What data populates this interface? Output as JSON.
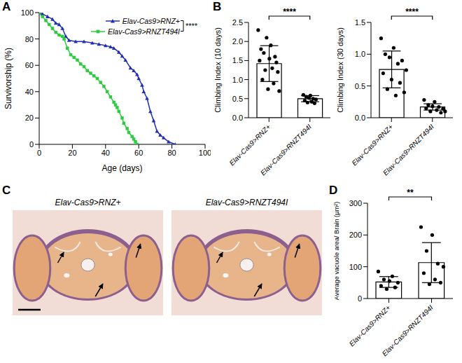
{
  "chart_data": [
    {
      "panel": "A",
      "type": "line",
      "x_label": "Age (days)",
      "y_label": "Survivorship (%)",
      "xlim": [
        0,
        100
      ],
      "xticks": [
        0,
        20,
        40,
        60,
        80,
        100
      ],
      "ylim": [
        0,
        100
      ],
      "yticks": [
        0,
        20,
        40,
        60,
        80,
        100
      ],
      "legend": "upper right",
      "annotations": [
        {
          "text": "****"
        }
      ],
      "series": [
        {
          "name": "Elav-Cas9>RNZ+",
          "color": "#1f2fb5",
          "marker": "triangle",
          "x": [
            0,
            2,
            5,
            8,
            10,
            12,
            14,
            16,
            18,
            22,
            27,
            32,
            36,
            40,
            43,
            45,
            48,
            50,
            52,
            55,
            57,
            59,
            60,
            62,
            63,
            65,
            67,
            69,
            71,
            73,
            75,
            78,
            82
          ],
          "values": [
            100,
            99,
            97,
            95,
            92,
            91,
            88,
            82,
            79,
            78,
            78,
            77,
            76,
            75,
            74,
            73,
            70,
            67,
            64,
            58,
            56,
            53,
            50,
            45,
            40,
            35,
            25,
            18,
            10,
            7,
            5,
            2,
            0
          ]
        },
        {
          "name": "Elav-Cas9>RNZT494I",
          "color": "#2ecc40",
          "marker": "square",
          "x": [
            0,
            2,
            4,
            6,
            8,
            10,
            12,
            14,
            15,
            17,
            19,
            21,
            23,
            25,
            27,
            29,
            31,
            33,
            35,
            37,
            39,
            41,
            43,
            45,
            46,
            47,
            48,
            50,
            51,
            53,
            54,
            56,
            57,
            58,
            59
          ],
          "values": [
            100,
            97,
            94,
            91,
            88,
            85,
            83,
            82,
            80,
            73,
            68,
            66,
            64,
            61,
            59,
            56,
            54,
            52,
            50,
            47,
            44,
            40,
            36,
            32,
            30,
            28,
            25,
            20,
            16,
            12,
            9,
            6,
            4,
            2,
            0
          ]
        }
      ]
    },
    {
      "panel": "B",
      "type": "bar",
      "y_label": "Climbing Index (10 days)",
      "categories": [
        "Elav-Cas9>RNZ+",
        "Elav-Cas9>RNZT494I"
      ],
      "values": [
        1.42,
        0.5
      ],
      "errors": [
        0.47,
        0.08
      ],
      "points": [
        [
          2.3,
          1.5,
          1.8,
          1.0,
          1.7,
          1.25,
          2.1,
          0.75,
          1.55,
          1.9,
          1.3,
          0.9,
          1.6,
          1.45,
          1.2,
          0.7
        ],
        [
          0.6,
          0.45,
          0.55,
          0.4,
          0.52,
          0.58,
          0.42,
          0.5,
          0.38,
          0.48
        ]
      ],
      "ylim": [
        0,
        2.5
      ],
      "yticks": [
        {
          "value": 0,
          "label": "0.0"
        },
        0.5,
        {
          "value": 1,
          "label": "1.0"
        },
        1.5,
        {
          "value": 2,
          "label": "2.0"
        },
        2.5
      ],
      "color": "#ffffff",
      "annotations": [
        {
          "text": "****"
        }
      ]
    },
    {
      "type": "bar",
      "y_label": "Climbing Index (30 days)",
      "categories": [
        "Elav-Cas9>RNZ+",
        "Elav-Cas9>RNZT494I"
      ],
      "values": [
        0.76,
        0.17
      ],
      "errors": [
        0.29,
        0.05
      ],
      "points": [
        [
          1.25,
          0.7,
          1.0,
          0.45,
          0.95,
          0.6,
          1.1,
          0.35,
          0.85,
          0.55,
          0.9,
          0.4,
          0.75
        ],
        [
          0.28,
          0.15,
          0.2,
          0.1,
          0.18,
          0.25,
          0.12,
          0.17,
          0.08,
          0.14,
          0.1
        ]
      ],
      "ylim": [
        0,
        1.5
      ],
      "yticks": [
        {
          "value": 0,
          "label": "0.0"
        },
        0.5,
        {
          "value": 1,
          "label": "1.0"
        },
        1.5
      ],
      "color": "#ffffff",
      "annotations": [
        {
          "text": "****"
        }
      ]
    },
    {
      "panel": "C",
      "type": "image",
      "titles": [
        "Elav-Cas9>RNZ+",
        "Elav-Cas9>RNZT494I"
      ]
    },
    {
      "panel": "D",
      "type": "bar",
      "y_label": "Average vacuole area/ Brain (µm²)",
      "categories": [
        "Elav-Cas9>RNZ+",
        "Elav-Cas9>RNZT494I"
      ],
      "values": [
        52,
        113
      ],
      "errors": [
        17,
        63
      ],
      "points": [
        [
          85,
          40,
          60,
          30,
          55,
          70,
          35,
          50
        ],
        [
          225,
          80,
          150,
          45,
          200,
          60,
          110,
          50,
          100
        ]
      ],
      "ylim": [
        0,
        300
      ],
      "yticks": [
        0,
        100,
        200,
        300
      ],
      "color": "#ffffff",
      "annotations": [
        {
          "text": "**"
        }
      ]
    }
  ]
}
